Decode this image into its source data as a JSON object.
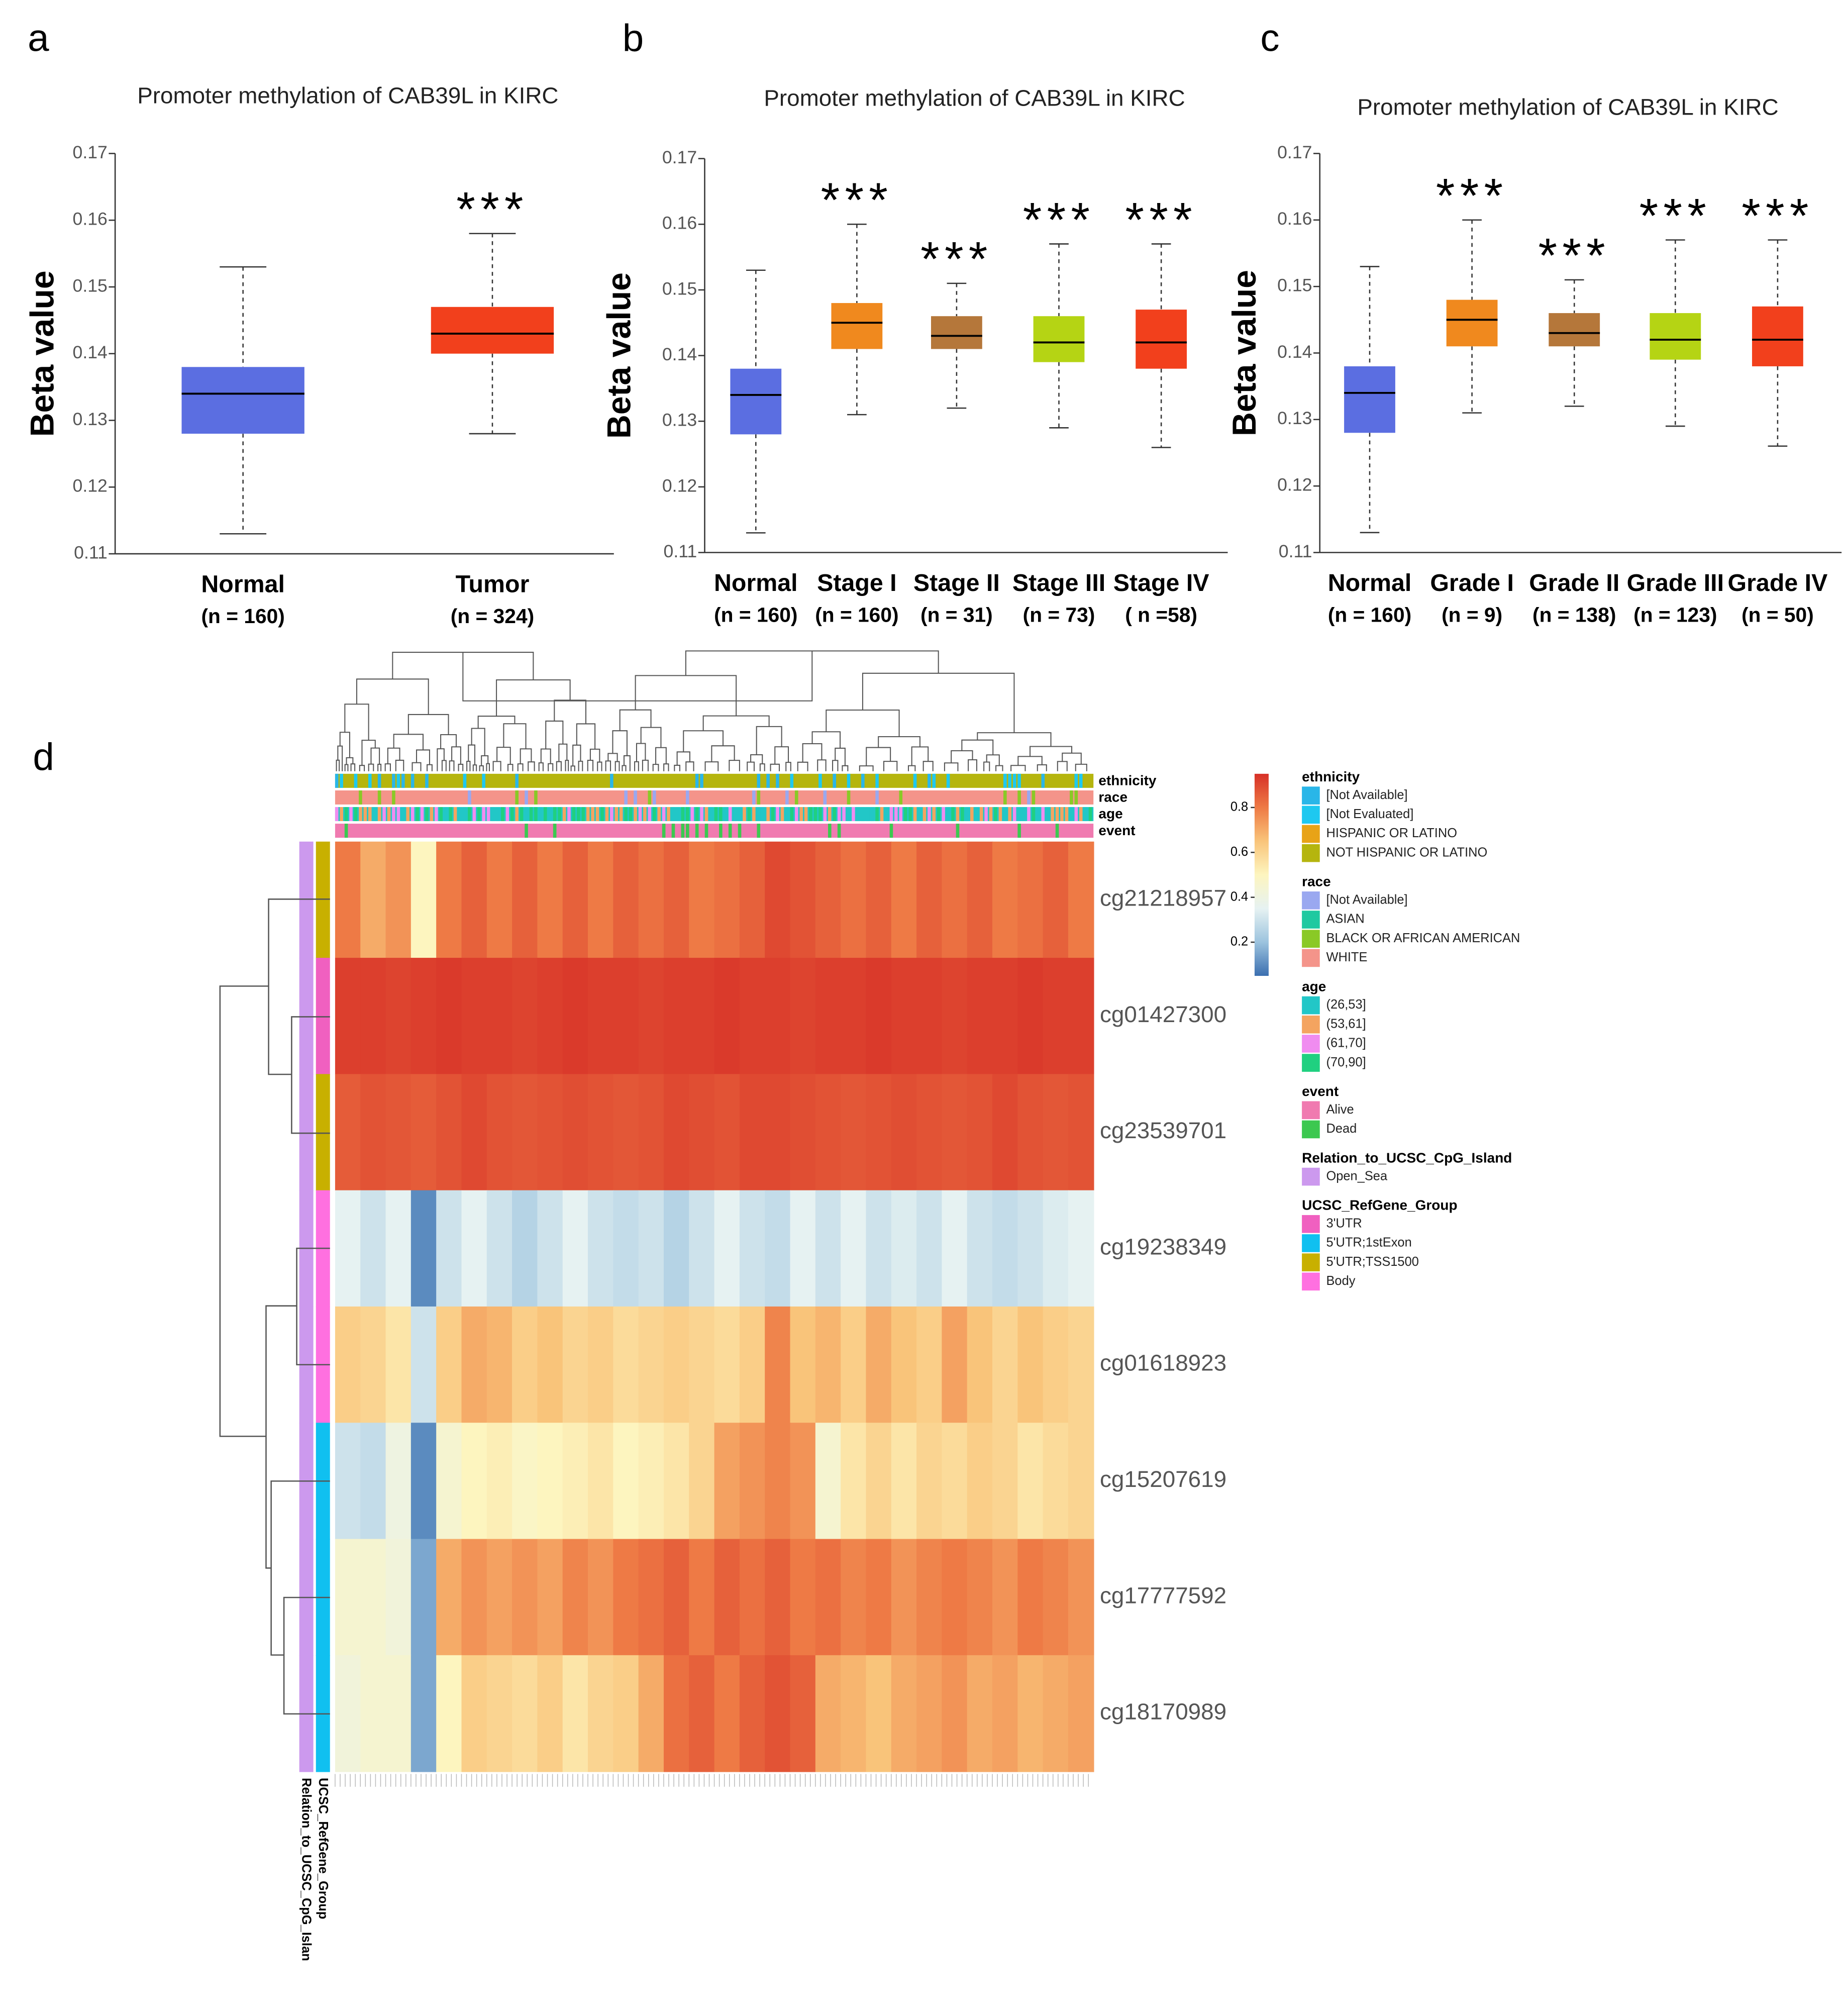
{
  "chart_data": [
    {
      "type": "box",
      "panel": "a",
      "title": "Promoter methylation of CAB39L in KIRC",
      "y_label": "Beta value",
      "categories": [
        "Normal",
        "Tumor"
      ],
      "sublabels": [
        "(n = 160)",
        "(n = 324)"
      ],
      "annotations": [
        null,
        "***"
      ],
      "colors": [
        "#5b6ee1",
        "#f2401c"
      ],
      "stats": [
        {
          "min": 0.113,
          "q1": 0.128,
          "median": 0.134,
          "q3": 0.138,
          "max": 0.153
        },
        {
          "min": 0.128,
          "q1": 0.14,
          "median": 0.143,
          "q3": 0.147,
          "max": 0.158
        }
      ],
      "ylim": [
        0.11,
        0.17
      ],
      "yticks": [
        0.11,
        0.12,
        0.13,
        0.14,
        0.15,
        0.16,
        0.17
      ]
    },
    {
      "type": "box",
      "panel": "b",
      "title": "Promoter methylation of CAB39L in KIRC",
      "y_label": "Beta value",
      "categories": [
        "Normal",
        "Stage I",
        "Stage II",
        "Stage III",
        "Stage IV"
      ],
      "sublabels": [
        "(n = 160)",
        "(n = 160)",
        "(n = 31)",
        "(n = 73)",
        "( n =58)"
      ],
      "annotations": [
        null,
        "***",
        "***",
        "***",
        "***"
      ],
      "colors": [
        "#5b6ee1",
        "#f0891e",
        "#b5773a",
        "#b5d414",
        "#f2401c"
      ],
      "stats": [
        {
          "min": 0.113,
          "q1": 0.128,
          "median": 0.134,
          "q3": 0.138,
          "max": 0.153
        },
        {
          "min": 0.131,
          "q1": 0.141,
          "median": 0.145,
          "q3": 0.148,
          "max": 0.16
        },
        {
          "min": 0.132,
          "q1": 0.141,
          "median": 0.143,
          "q3": 0.146,
          "max": 0.151
        },
        {
          "min": 0.129,
          "q1": 0.139,
          "median": 0.142,
          "q3": 0.146,
          "max": 0.157
        },
        {
          "min": 0.126,
          "q1": 0.138,
          "median": 0.142,
          "q3": 0.147,
          "max": 0.157
        }
      ],
      "ylim": [
        0.11,
        0.17
      ],
      "yticks": [
        0.11,
        0.12,
        0.13,
        0.14,
        0.15,
        0.16,
        0.17
      ]
    },
    {
      "type": "box",
      "panel": "c",
      "title": "Promoter methylation of CAB39L in KIRC",
      "y_label": "Beta value",
      "categories": [
        "Normal",
        "Grade I",
        "Grade II",
        "Grade III",
        "Grade IV"
      ],
      "sublabels": [
        "(n = 160)",
        "(n = 9)",
        "(n = 138)",
        "(n = 123)",
        "(n = 50)"
      ],
      "annotations": [
        null,
        "***",
        "***",
        "***",
        "***"
      ],
      "colors": [
        "#5b6ee1",
        "#f0891e",
        "#b5773a",
        "#b5d414",
        "#f2401c"
      ],
      "stats": [
        {
          "min": 0.113,
          "q1": 0.128,
          "median": 0.134,
          "q3": 0.138,
          "max": 0.153
        },
        {
          "min": 0.131,
          "q1": 0.141,
          "median": 0.145,
          "q3": 0.148,
          "max": 0.16
        },
        {
          "min": 0.132,
          "q1": 0.141,
          "median": 0.143,
          "q3": 0.146,
          "max": 0.151
        },
        {
          "min": 0.129,
          "q1": 0.139,
          "median": 0.142,
          "q3": 0.146,
          "max": 0.157
        },
        {
          "min": 0.126,
          "q1": 0.138,
          "median": 0.142,
          "q3": 0.147,
          "max": 0.157
        }
      ],
      "ylim": [
        0.11,
        0.17
      ],
      "yticks": [
        0.11,
        0.12,
        0.13,
        0.14,
        0.15,
        0.16,
        0.17
      ]
    },
    {
      "type": "heatmap",
      "panel": "d",
      "rows": [
        "cg21218957",
        "cg01427300",
        "cg23539701",
        "cg19238349",
        "cg01618923",
        "cg15207619",
        "cg17777592",
        "cg18170989"
      ],
      "column_annotations": [
        "ethnicity",
        "race",
        "age",
        "event"
      ],
      "row_annotations": [
        {
          "name": "Relation_to_UCSC_CpG_Islan",
          "values": [
            "Open_Sea",
            "Open_Sea",
            "Open_Sea",
            "Open_Sea",
            "Open_Sea",
            "Open_Sea",
            "Open_Sea",
            "Open_Sea"
          ]
        },
        {
          "name": "UCSC_RefGene_Group",
          "values": [
            "5'UTR;TSS1500",
            "3'UTR",
            "5'UTR;TSS1500",
            "Body",
            "Body",
            "5'UTR;1stExon",
            "5'UTR;1stExon",
            "5'UTR;1stExon"
          ]
        }
      ],
      "zlim": [
        0.05,
        0.95
      ],
      "zticks": [
        0.2,
        0.4,
        0.6,
        0.8
      ],
      "colors": [
        "#3b6fb0",
        "#9cc3de",
        "#e6f2f2",
        "#fdf5bf",
        "#f9c47a",
        "#ee7a45",
        "#d73027"
      ],
      "values": [
        [
          0.8,
          0.7,
          0.75,
          0.5,
          0.8,
          0.85,
          0.8,
          0.85,
          0.8,
          0.85,
          0.8,
          0.85,
          0.82,
          0.85,
          0.8,
          0.82,
          0.85,
          0.9,
          0.88,
          0.85,
          0.82,
          0.85,
          0.8,
          0.85,
          0.82,
          0.85,
          0.8,
          0.82,
          0.85,
          0.8
        ],
        [
          0.92,
          0.92,
          0.91,
          0.92,
          0.93,
          0.92,
          0.92,
          0.91,
          0.92,
          0.93,
          0.92,
          0.92,
          0.91,
          0.92,
          0.92,
          0.93,
          0.92,
          0.92,
          0.91,
          0.92,
          0.92,
          0.93,
          0.92,
          0.92,
          0.91,
          0.92,
          0.92,
          0.93,
          0.92,
          0.92
        ],
        [
          0.86,
          0.88,
          0.87,
          0.86,
          0.88,
          0.9,
          0.88,
          0.87,
          0.88,
          0.89,
          0.88,
          0.87,
          0.88,
          0.9,
          0.89,
          0.88,
          0.9,
          0.9,
          0.89,
          0.88,
          0.87,
          0.88,
          0.89,
          0.88,
          0.87,
          0.88,
          0.9,
          0.88,
          0.87,
          0.88
        ],
        [
          0.35,
          0.3,
          0.35,
          0.1,
          0.3,
          0.35,
          0.3,
          0.25,
          0.3,
          0.35,
          0.3,
          0.28,
          0.3,
          0.25,
          0.3,
          0.35,
          0.3,
          0.28,
          0.35,
          0.3,
          0.35,
          0.3,
          0.33,
          0.3,
          0.35,
          0.3,
          0.28,
          0.3,
          0.33,
          0.35
        ],
        [
          0.62,
          0.6,
          0.55,
          0.3,
          0.62,
          0.7,
          0.68,
          0.62,
          0.65,
          0.6,
          0.62,
          0.58,
          0.6,
          0.62,
          0.6,
          0.58,
          0.62,
          0.78,
          0.65,
          0.68,
          0.62,
          0.7,
          0.65,
          0.62,
          0.72,
          0.65,
          0.6,
          0.65,
          0.62,
          0.6
        ],
        [
          0.3,
          0.28,
          0.4,
          0.1,
          0.45,
          0.5,
          0.52,
          0.48,
          0.5,
          0.52,
          0.55,
          0.5,
          0.52,
          0.55,
          0.6,
          0.72,
          0.75,
          0.78,
          0.75,
          0.45,
          0.55,
          0.6,
          0.55,
          0.6,
          0.58,
          0.62,
          0.6,
          0.55,
          0.58,
          0.6
        ],
        [
          0.45,
          0.45,
          0.42,
          0.15,
          0.7,
          0.75,
          0.72,
          0.75,
          0.72,
          0.78,
          0.75,
          0.8,
          0.82,
          0.85,
          0.8,
          0.85,
          0.82,
          0.85,
          0.8,
          0.82,
          0.78,
          0.8,
          0.75,
          0.78,
          0.8,
          0.78,
          0.75,
          0.8,
          0.78,
          0.75
        ],
        [
          0.42,
          0.45,
          0.45,
          0.15,
          0.5,
          0.62,
          0.6,
          0.58,
          0.62,
          0.55,
          0.6,
          0.62,
          0.7,
          0.82,
          0.85,
          0.8,
          0.85,
          0.88,
          0.85,
          0.7,
          0.68,
          0.65,
          0.7,
          0.72,
          0.75,
          0.7,
          0.72,
          0.68,
          0.7,
          0.72
        ]
      ],
      "legend": [
        {
          "title": "ethnicity",
          "items": [
            {
              "label": "[Not Available]",
              "color": "#29b6e8"
            },
            {
              "label": "[Not Evaluated]",
              "color": "#1ec8f0"
            },
            {
              "label": "HISPANIC OR LATINO",
              "color": "#e8a317"
            },
            {
              "label": "NOT HISPANIC OR LATINO",
              "color": "#b5b50e"
            }
          ]
        },
        {
          "title": "race",
          "items": [
            {
              "label": "[Not Available]",
              "color": "#9aa8f0"
            },
            {
              "label": "ASIAN",
              "color": "#20c9a0"
            },
            {
              "label": "BLACK OR AFRICAN AMERICAN",
              "color": "#8ac926"
            },
            {
              "label": "WHITE",
              "color": "#f4948a"
            }
          ]
        },
        {
          "title": "age",
          "items": [
            {
              "label": "(26,53]",
              "color": "#22c7c7"
            },
            {
              "label": "(53,61]",
              "color": "#f4a460"
            },
            {
              "label": "(61,70]",
              "color": "#f08cf0"
            },
            {
              "label": "(70,90]",
              "color": "#20d080"
            }
          ]
        },
        {
          "title": "event",
          "items": [
            {
              "label": "Alive",
              "color": "#f07ab0"
            },
            {
              "label": "Dead",
              "color": "#3cc850"
            }
          ]
        },
        {
          "title": "Relation_to_UCSC_CpG_Island",
          "items": [
            {
              "label": "Open_Sea",
              "color": "#cc99ee"
            }
          ]
        },
        {
          "title": "UCSC_RefGene_Group",
          "items": [
            {
              "label": "3'UTR",
              "color": "#f060c0"
            },
            {
              "label": "5'UTR;1stExon",
              "color": "#10c0f0"
            },
            {
              "label": "5'UTR;TSS1500",
              "color": "#c8b000"
            },
            {
              "label": "Body",
              "color": "#ff70e0"
            }
          ]
        }
      ]
    }
  ]
}
